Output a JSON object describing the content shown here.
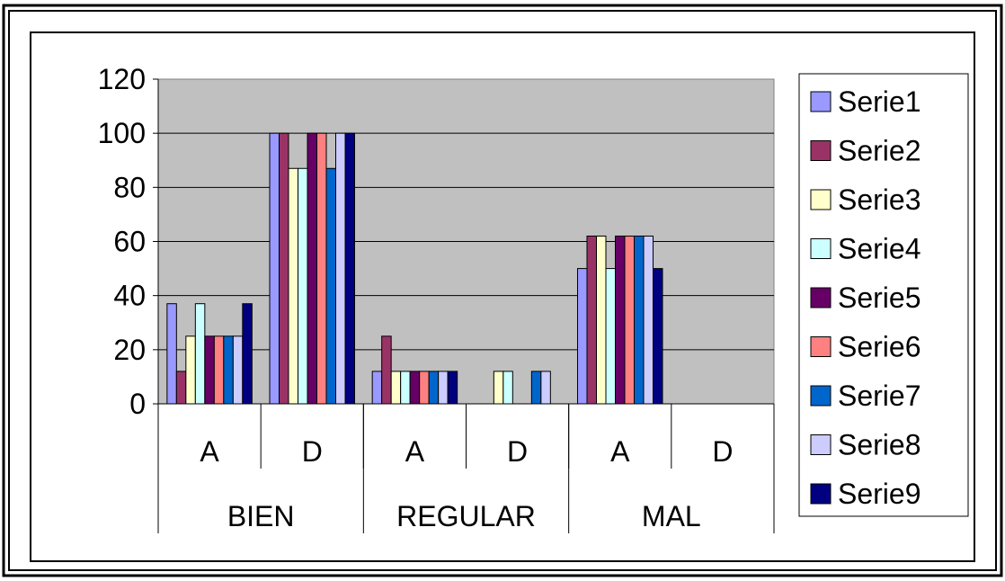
{
  "chart_data": {
    "type": "bar",
    "groups": [
      "BIEN",
      "REGULAR",
      "MAL"
    ],
    "categories": [
      "A",
      "D",
      "A",
      "D",
      "A",
      "D"
    ],
    "ylim": [
      0,
      120
    ],
    "yticks": [
      "0",
      "20",
      "40",
      "60",
      "80",
      "100",
      "120"
    ],
    "grid": true,
    "legend_position": "right",
    "series": [
      {
        "name": "Serie1",
        "color": "#9999ff",
        "values": [
          37,
          100,
          12,
          0,
          50,
          0
        ]
      },
      {
        "name": "Serie2",
        "color": "#993366",
        "values": [
          12,
          100,
          25,
          0,
          62,
          0
        ]
      },
      {
        "name": "Serie3",
        "color": "#ffffcc",
        "values": [
          25,
          87,
          12,
          12,
          62,
          0
        ]
      },
      {
        "name": "Serie4",
        "color": "#ccffff",
        "values": [
          37,
          87,
          12,
          12,
          50,
          0
        ]
      },
      {
        "name": "Serie5",
        "color": "#660066",
        "values": [
          25,
          100,
          12,
          0,
          62,
          0
        ]
      },
      {
        "name": "Serie6",
        "color": "#ff8080",
        "values": [
          25,
          100,
          12,
          0,
          62,
          0
        ]
      },
      {
        "name": "Serie7",
        "color": "#0066cc",
        "values": [
          25,
          87,
          12,
          12,
          62,
          0
        ]
      },
      {
        "name": "Serie8",
        "color": "#ccccff",
        "values": [
          25,
          100,
          12,
          12,
          62,
          0
        ]
      },
      {
        "name": "Serie9",
        "color": "#000080",
        "values": [
          37,
          100,
          12,
          0,
          50,
          0
        ]
      }
    ]
  },
  "colors": {
    "plot_background": "#c0c0c0",
    "frame": "#000000",
    "page": "#ffffff"
  }
}
